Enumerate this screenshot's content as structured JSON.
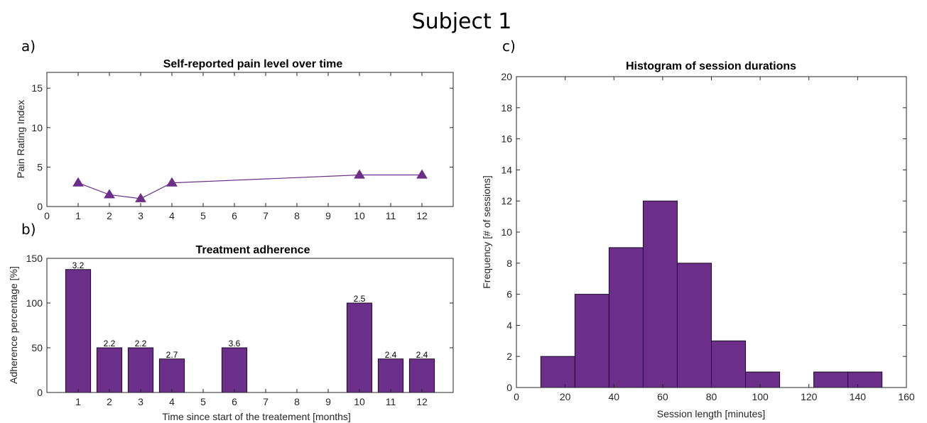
{
  "figure": {
    "suptitle": "Subject 1",
    "panel_labels": [
      "a)",
      "b)",
      "c)"
    ]
  },
  "colors": {
    "purple": "#6b2f8a",
    "axis": "#262626"
  },
  "chart_data": [
    {
      "id": "a",
      "type": "line",
      "title": "Self-reported pain level over time",
      "xlabel": "",
      "ylabel": "Pain Rating Index",
      "marker": "triangle",
      "x": [
        1,
        2,
        3,
        4,
        10,
        12
      ],
      "y": [
        3,
        1.5,
        1,
        3,
        4,
        4
      ],
      "xlim": [
        0,
        13
      ],
      "ylim": [
        0,
        17
      ],
      "xticks": [
        0,
        1,
        2,
        3,
        4,
        5,
        6,
        7,
        8,
        9,
        10,
        11,
        12
      ],
      "yticks": [
        0,
        5,
        10,
        15
      ],
      "grid": false
    },
    {
      "id": "b",
      "type": "bar",
      "title": "Treatment adherence",
      "xlabel": "Time since start of the treatement [months]",
      "ylabel": "Adherence percentage [%]",
      "categories": [
        "1",
        "2",
        "3",
        "4",
        "5",
        "6",
        "7",
        "8",
        "9",
        "10",
        "11",
        "12"
      ],
      "values": [
        137.5,
        50,
        50,
        37.5,
        0,
        50,
        0,
        0,
        0,
        100,
        37.5,
        37.5
      ],
      "data_labels": [
        "3.2",
        "2.2",
        "2.2",
        "2.7",
        "",
        "3.6",
        "",
        "",
        "",
        "2.5",
        "2.4",
        "2.4"
      ],
      "xlim": [
        0,
        13
      ],
      "ylim": [
        0,
        150
      ],
      "yticks": [
        0,
        50,
        100,
        150
      ],
      "grid": false
    },
    {
      "id": "c",
      "type": "bar",
      "subtype": "histogram",
      "title": "Histogram of session durations",
      "xlabel": "Session length [minutes]",
      "ylabel": "Frequency [# of sessions]",
      "bin_edges": [
        10,
        24,
        38,
        52,
        66,
        80,
        94,
        108,
        122,
        136,
        150
      ],
      "values": [
        2,
        6,
        9,
        12,
        8,
        3,
        1,
        0,
        1,
        1
      ],
      "xlim": [
        0,
        160
      ],
      "ylim": [
        0,
        20
      ],
      "xticks": [
        0,
        20,
        40,
        60,
        80,
        100,
        120,
        140,
        160
      ],
      "yticks": [
        0,
        2,
        4,
        6,
        8,
        10,
        12,
        14,
        16,
        18,
        20
      ],
      "grid": false
    }
  ]
}
